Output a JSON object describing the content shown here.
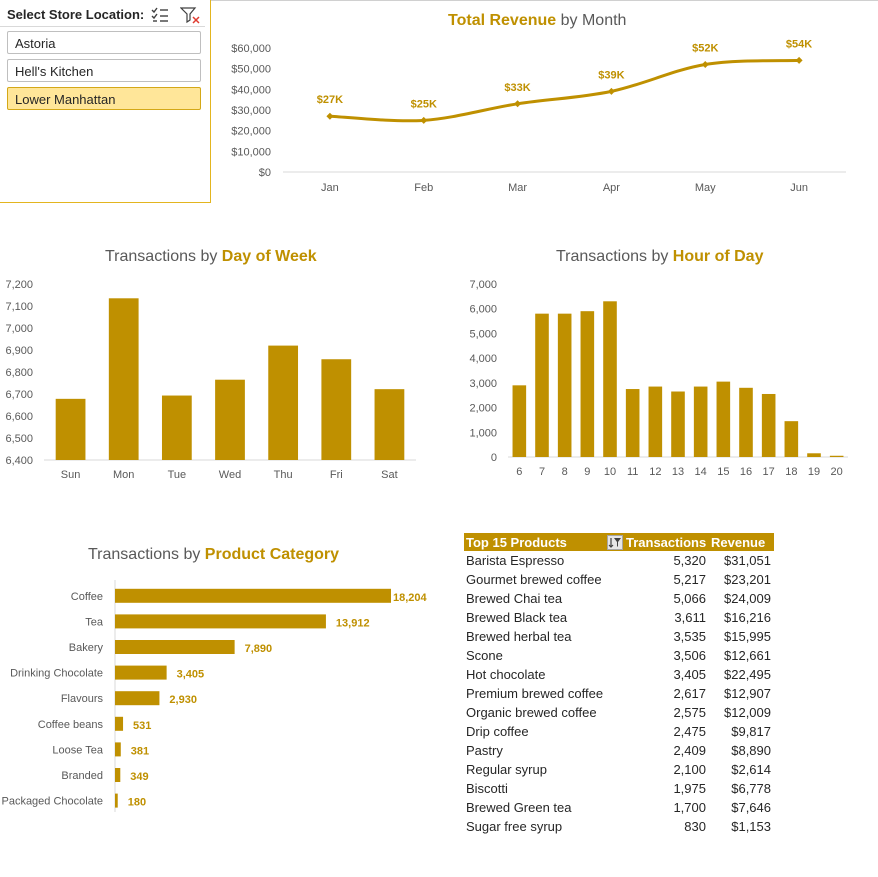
{
  "slicer": {
    "title": "Select Store Location:",
    "items": [
      {
        "label": "Astoria",
        "selected": false
      },
      {
        "label": "Hell's Kitchen",
        "selected": false
      },
      {
        "label": "Lower Manhattan",
        "selected": true
      }
    ],
    "icons": [
      "multi-select-icon",
      "clear-filter-icon"
    ]
  },
  "colors": {
    "accent": "#bf9000",
    "selected": "#ffe699",
    "border": "#e3b51f",
    "title_gray": "#595959"
  },
  "revenue_chart": {
    "title_bold": "Total Revenue",
    "title_rest": " by Month"
  },
  "dow_chart": {
    "title_rest": "Transactions by ",
    "title_bold": "Day of Week"
  },
  "hour_chart": {
    "title_rest": "Transactions by ",
    "title_bold": "Hour of Day"
  },
  "cat_chart": {
    "title_rest": "Transactions by ",
    "title_bold": "Product Category"
  },
  "chart_data": [
    {
      "type": "line",
      "title": "Total Revenue by Month",
      "x": [
        "Jan",
        "Feb",
        "Mar",
        "Apr",
        "May",
        "Jun"
      ],
      "values": [
        27000,
        25000,
        33000,
        39000,
        52000,
        54000
      ],
      "data_labels": [
        "$27K",
        "$25K",
        "$33K",
        "$39K",
        "$52K",
        "$54K"
      ],
      "yticks": [
        "$0",
        "$10,000",
        "$20,000",
        "$30,000",
        "$40,000",
        "$50,000",
        "$60,000"
      ],
      "ylim": [
        0,
        60000
      ],
      "smooth": true,
      "grid": false
    },
    {
      "type": "bar",
      "title": "Transactions by Day of Week",
      "categories": [
        "Sun",
        "Mon",
        "Tue",
        "Wed",
        "Thu",
        "Fri",
        "Sat"
      ],
      "values": [
        6678,
        7135,
        6693,
        6765,
        6920,
        6858,
        6722
      ],
      "yticks": [
        "6,400",
        "6,500",
        "6,600",
        "6,700",
        "6,800",
        "6,900",
        "7,000",
        "7,100",
        "7,200"
      ],
      "ylim": [
        6400,
        7200
      ]
    },
    {
      "type": "bar",
      "title": "Transactions by Hour of Day",
      "categories": [
        "6",
        "7",
        "8",
        "9",
        "10",
        "11",
        "12",
        "13",
        "14",
        "15",
        "16",
        "17",
        "18",
        "19",
        "20"
      ],
      "values": [
        2900,
        5800,
        5800,
        5900,
        6300,
        2750,
        2850,
        2650,
        2850,
        3050,
        2800,
        2550,
        1450,
        150,
        50
      ],
      "yticks": [
        "0",
        "1,000",
        "2,000",
        "3,000",
        "4,000",
        "5,000",
        "6,000",
        "7,000"
      ],
      "ylim": [
        0,
        7000
      ]
    },
    {
      "type": "bar",
      "orientation": "horizontal",
      "title": "Transactions by Product Category",
      "categories": [
        "Coffee",
        "Tea",
        "Bakery",
        "Drinking Chocolate",
        "Flavours",
        "Coffee beans",
        "Loose Tea",
        "Branded",
        "Packaged Chocolate"
      ],
      "values": [
        18204,
        13912,
        7890,
        3405,
        2930,
        531,
        381,
        349,
        180
      ],
      "data_labels": [
        "18,204",
        "13,912",
        "7,890",
        "3,405",
        "2,930",
        "531",
        "381",
        "349",
        "180"
      ]
    }
  ],
  "table": {
    "headers": [
      "Top 15 Products",
      "Transactions",
      "Revenue"
    ],
    "rows": [
      [
        "Barista Espresso",
        "5,320",
        "$31,051"
      ],
      [
        "Gourmet brewed coffee",
        "5,217",
        "$23,201"
      ],
      [
        "Brewed Chai tea",
        "5,066",
        "$24,009"
      ],
      [
        "Brewed Black tea",
        "3,611",
        "$16,216"
      ],
      [
        "Brewed herbal tea",
        "3,535",
        "$15,995"
      ],
      [
        "Scone",
        "3,506",
        "$12,661"
      ],
      [
        "Hot chocolate",
        "3,405",
        "$22,495"
      ],
      [
        "Premium brewed coffee",
        "2,617",
        "$12,907"
      ],
      [
        "Organic brewed coffee",
        "2,575",
        "$12,009"
      ],
      [
        "Drip coffee",
        "2,475",
        "$9,817"
      ],
      [
        "Pastry",
        "2,409",
        "$8,890"
      ],
      [
        "Regular syrup",
        "2,100",
        "$2,614"
      ],
      [
        "Biscotti",
        "1,975",
        "$6,778"
      ],
      [
        "Brewed Green tea",
        "1,700",
        "$7,646"
      ],
      [
        "Sugar free syrup",
        "830",
        "$1,153"
      ]
    ],
    "sort_icon": "sort-filter-icon"
  }
}
